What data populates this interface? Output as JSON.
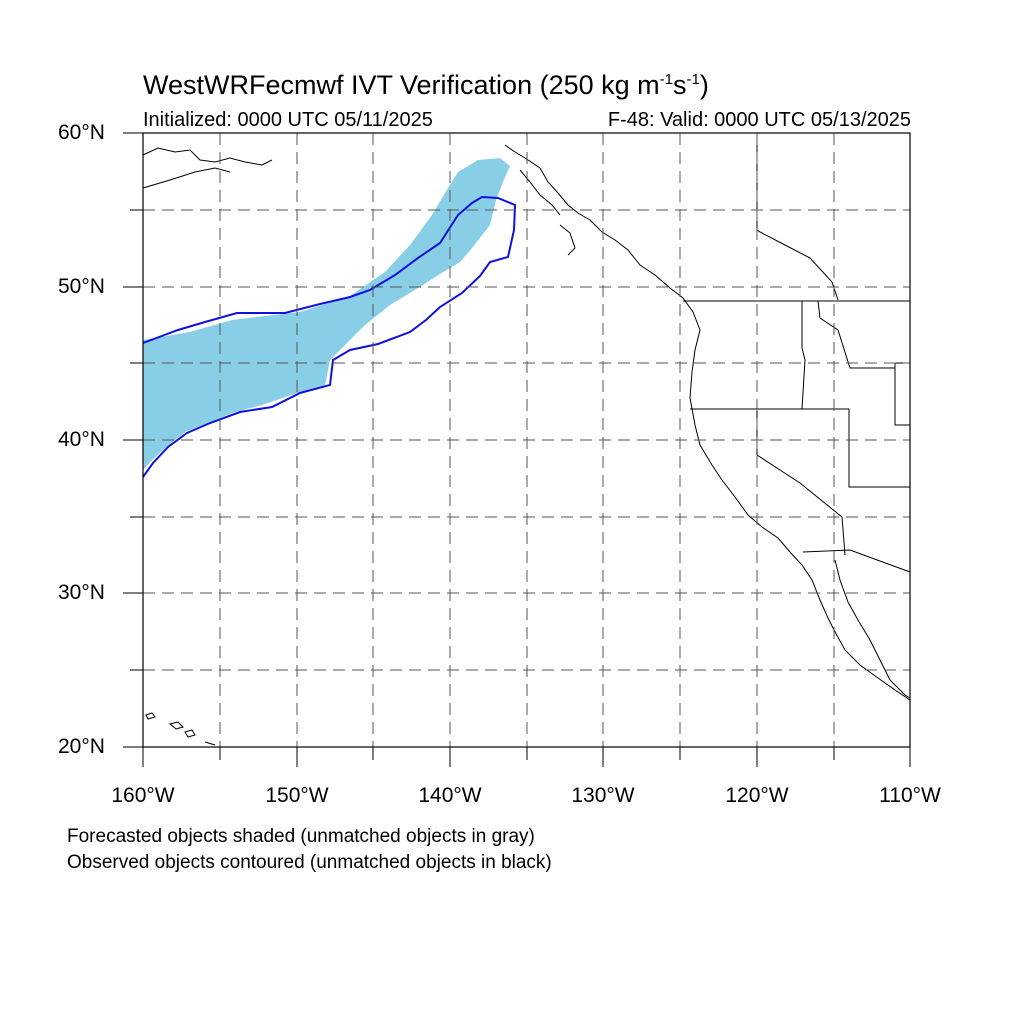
{
  "title_main": "WestWRFecmwf IVT Verification (250 kg m",
  "title_exp1": "-1",
  "title_mid": "s",
  "title_exp2": "-1",
  "title_end": ")",
  "init_text": "Initialized: 0000 UTC 05/11/2025",
  "valid_text": "F-48: Valid: 0000 UTC 05/13/2025",
  "lat_labels": [
    "60°N",
    "50°N",
    "40°N",
    "30°N",
    "20°N"
  ],
  "lon_labels": [
    "160°W",
    "150°W",
    "140°W",
    "130°W",
    "120°W",
    "110°W"
  ],
  "notes": [
    "Forecasted objects shaded (unmatched objects in gray)",
    "Observed objects contoured (unmatched objects in black)"
  ],
  "colors": {
    "forecast_fill": "#87CEE6",
    "observed_contour": "#1010E0",
    "coastline": "#000000",
    "grid": "#555555"
  },
  "map_extent": {
    "lon": [
      -160,
      -110
    ],
    "lat": [
      20,
      60
    ]
  }
}
